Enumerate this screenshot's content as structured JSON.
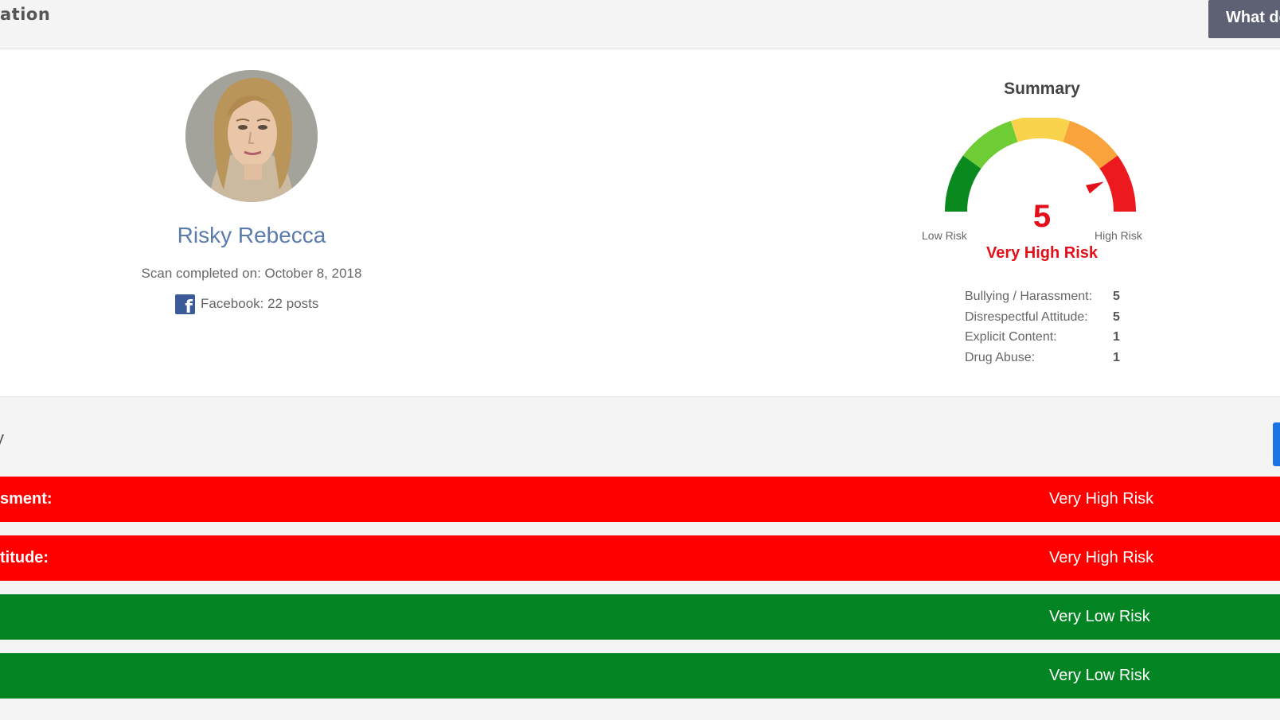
{
  "header": {
    "title": "ation",
    "help_button_label": "What de"
  },
  "profile": {
    "name": "Risky Rebecca",
    "scan_completed": "Scan completed on: October 8, 2018",
    "facebook_icon": "facebook-icon",
    "facebook_posts": "Facebook: 22 posts"
  },
  "summary": {
    "title": "Summary",
    "score": "5",
    "score_value": 5,
    "score_max": 5,
    "low_label": "Low Risk",
    "high_label": "High Risk",
    "risk_level": "Very High Risk",
    "risk_color": "#e3101a",
    "gauge_colors": [
      "#0a8a1e",
      "#6ecc34",
      "#f8d34b",
      "#f8a33c",
      "#ec1a1f"
    ],
    "metrics": [
      {
        "label": "Bullying / Harassment:",
        "value": "5"
      },
      {
        "label": "Disrespectful Attitude:",
        "value": "5"
      },
      {
        "label": "Explicit Content:",
        "value": "1"
      },
      {
        "label": "Drug Abuse:",
        "value": "1"
      }
    ]
  },
  "categories_section": {
    "title": "y",
    "bars": [
      {
        "label": "sment:",
        "level": "Very High Risk",
        "color": "#ff0000"
      },
      {
        "label": "titude:",
        "level": "Very High Risk",
        "color": "#ff0000"
      },
      {
        "label": "",
        "level": "Very Low Risk",
        "color": "#038423"
      },
      {
        "label": "",
        "level": "Very Low Risk",
        "color": "#038423"
      }
    ]
  }
}
